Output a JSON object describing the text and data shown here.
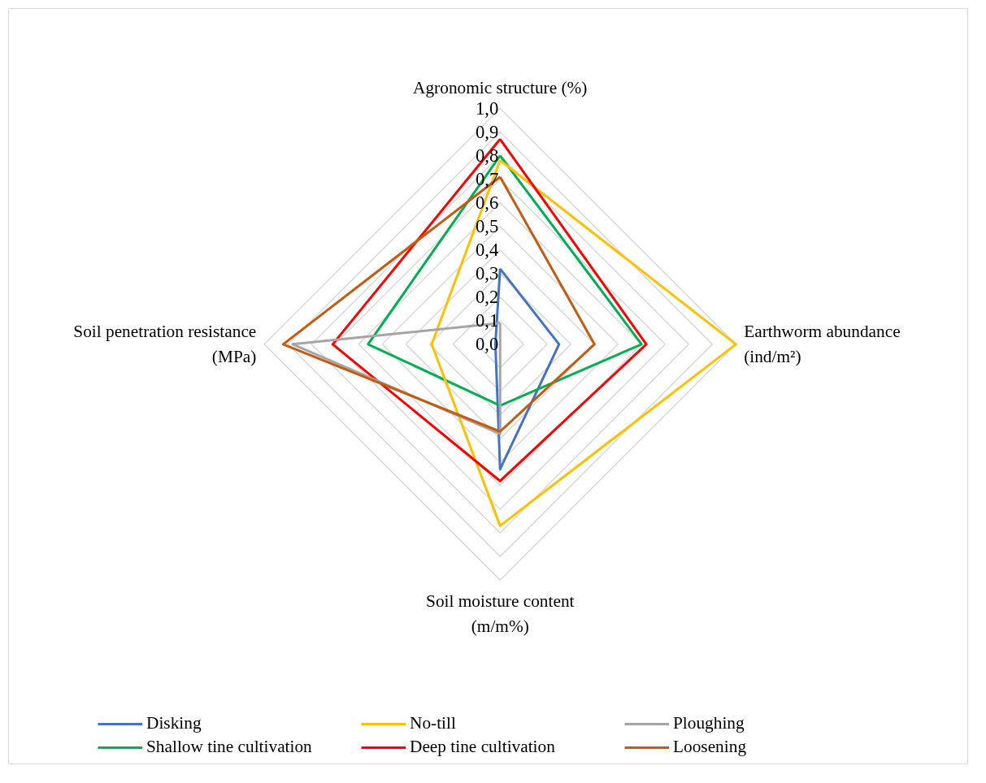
{
  "chart_data": {
    "type": "radar",
    "categories": [
      "Agronomic structure (%)",
      "Earthworm abundance\n(ind/m²)",
      "Soil moisture content\n(m/m%)",
      "Soil penetration resistance\n(MPa)"
    ],
    "series": [
      {
        "name": "Disking",
        "color": "#4472c4",
        "values": [
          0.32,
          0.25,
          0.53,
          0.02
        ]
      },
      {
        "name": "Shallow tine cultivation",
        "color": "#00b050",
        "values": [
          0.8,
          0.6,
          0.26,
          0.56
        ]
      },
      {
        "name": "No-till",
        "color": "#ffc000",
        "values": [
          0.78,
          1.0,
          0.77,
          0.29
        ]
      },
      {
        "name": "Deep tine cultivation",
        "color": "#ff0000",
        "values": [
          0.87,
          0.62,
          0.58,
          0.71
        ]
      },
      {
        "name": "Ploughing",
        "color": "#a5a5a5",
        "values": [
          0.09,
          0.0,
          0.38,
          0.88
        ]
      },
      {
        "name": "Loosening",
        "color": "#c55a11",
        "values": [
          0.71,
          0.4,
          0.37,
          0.92
        ]
      }
    ],
    "ylim": [
      0,
      1.0
    ],
    "yticks": [
      {
        "value": 0,
        "label": "0,0"
      },
      {
        "value": 0.1,
        "label": "0,1"
      },
      {
        "value": 0.2,
        "label": "0,2"
      },
      {
        "value": 0.3,
        "label": "0,3"
      },
      {
        "value": 0.4,
        "label": "0,4"
      },
      {
        "value": 0.5,
        "label": "0,5"
      },
      {
        "value": 0.6,
        "label": "0,6"
      },
      {
        "value": 0.7,
        "label": "0,7"
      },
      {
        "value": 0.8,
        "label": "0,8"
      },
      {
        "value": 0.9,
        "label": "0,9"
      },
      {
        "value": 1.0,
        "label": "1,0"
      }
    ],
    "grid": true,
    "legend": "bottom",
    "marker": "none",
    "line_style": "solid"
  }
}
